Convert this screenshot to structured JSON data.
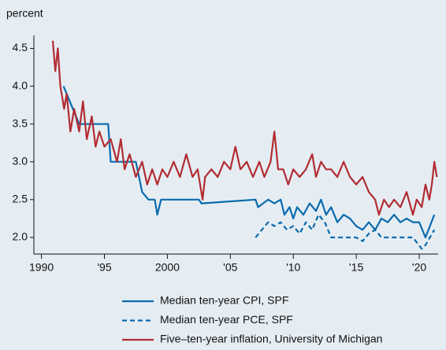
{
  "chart_data": {
    "type": "line",
    "y_label": "percent",
    "xlim": [
      1989.4,
      2021.5
    ],
    "ylim": [
      1.78,
      4.62
    ],
    "xticks": [
      1990,
      {
        "value": 1995,
        "label": "'95"
      },
      2000,
      {
        "value": 2005,
        "label": "'05"
      },
      {
        "value": 2010,
        "label": "'10"
      },
      {
        "value": 2015,
        "label": "'15"
      },
      {
        "value": 2020,
        "label": "'20"
      }
    ],
    "yticks": [
      {
        "value": 2.0,
        "label": "2.0"
      },
      2.5,
      {
        "value": 3.0,
        "label": "3.0"
      },
      3.5,
      {
        "value": 4.0,
        "label": "4.0"
      },
      4.5
    ],
    "series": [
      {
        "name": "Median ten-year CPI, SPF",
        "color": "#0a6aad",
        "dash": false,
        "x": [
          1991.75,
          1992.5,
          1993.0,
          1995.3,
          1995.5,
          1997.5,
          1998.0,
          1998.5,
          1999.0,
          1999.2,
          1999.5,
          2002.5,
          2002.7,
          2007.0,
          2007.2,
          2008.0,
          2008.5,
          2009.0,
          2009.3,
          2009.7,
          2010.0,
          2010.3,
          2010.8,
          2011.3,
          2011.8,
          2012.2,
          2012.6,
          2013.0,
          2013.5,
          2014.0,
          2014.5,
          2015.0,
          2015.5,
          2016.0,
          2016.5,
          2017.0,
          2017.5,
          2018.0,
          2018.5,
          2019.0,
          2019.5,
          2020.0,
          2020.5,
          2021.2
        ],
        "values": [
          4.0,
          3.7,
          3.5,
          3.5,
          3.0,
          3.0,
          2.6,
          2.5,
          2.5,
          2.3,
          2.5,
          2.5,
          2.45,
          2.5,
          2.4,
          2.5,
          2.45,
          2.5,
          2.3,
          2.4,
          2.25,
          2.4,
          2.3,
          2.45,
          2.35,
          2.5,
          2.3,
          2.4,
          2.2,
          2.3,
          2.25,
          2.15,
          2.1,
          2.2,
          2.1,
          2.25,
          2.2,
          2.3,
          2.2,
          2.25,
          2.2,
          2.2,
          2.0,
          2.3
        ]
      },
      {
        "name": "Median ten-year PCE, SPF",
        "color": "#0a6aad",
        "dash": true,
        "x": [
          2007.0,
          2007.5,
          2008.0,
          2008.5,
          2009.0,
          2009.5,
          2010.0,
          2010.5,
          2011.0,
          2011.5,
          2012.0,
          2012.5,
          2013.0,
          2015.0,
          2015.5,
          2016.0,
          2016.5,
          2017.0,
          2019.5,
          2020.2,
          2020.5,
          2021.2
        ],
        "values": [
          2.0,
          2.1,
          2.2,
          2.15,
          2.2,
          2.1,
          2.15,
          2.05,
          2.2,
          2.1,
          2.3,
          2.2,
          2.0,
          2.0,
          1.95,
          2.05,
          2.1,
          2.0,
          2.0,
          1.85,
          1.9,
          2.1
        ]
      },
      {
        "name": "Five–ten-year inflation, University of Michigan",
        "color": "#b22c32",
        "dash": false,
        "x": [
          1990.9,
          1991.1,
          1991.3,
          1991.5,
          1991.8,
          1992.0,
          1992.3,
          1992.6,
          1993.0,
          1993.3,
          1993.6,
          1994.0,
          1994.3,
          1994.6,
          1995.0,
          1995.5,
          1996.0,
          1996.3,
          1996.6,
          1997.0,
          1997.5,
          1998.0,
          1998.4,
          1998.8,
          1999.2,
          1999.6,
          2000.0,
          2000.5,
          2001.0,
          2001.5,
          2002.0,
          2002.4,
          2002.8,
          2003.0,
          2003.5,
          2004.0,
          2004.5,
          2005.0,
          2005.4,
          2005.8,
          2006.3,
          2006.8,
          2007.3,
          2007.7,
          2008.2,
          2008.5,
          2008.8,
          2009.2,
          2009.6,
          2010.0,
          2010.5,
          2011.0,
          2011.5,
          2011.8,
          2012.2,
          2012.6,
          2013.0,
          2013.5,
          2014.0,
          2014.5,
          2015.0,
          2015.5,
          2016.0,
          2016.5,
          2016.8,
          2017.2,
          2017.6,
          2018.0,
          2018.5,
          2019.0,
          2019.5,
          2019.8,
          2020.2,
          2020.5,
          2020.8,
          2021.0,
          2021.2,
          2021.4
        ],
        "values": [
          4.6,
          4.2,
          4.5,
          4.0,
          3.7,
          3.9,
          3.4,
          3.7,
          3.4,
          3.8,
          3.3,
          3.6,
          3.2,
          3.4,
          3.2,
          3.3,
          3.0,
          3.3,
          2.9,
          3.1,
          2.8,
          3.0,
          2.7,
          2.9,
          2.7,
          2.9,
          2.8,
          3.0,
          2.8,
          3.1,
          2.8,
          2.9,
          2.5,
          2.8,
          2.9,
          2.8,
          3.0,
          2.9,
          3.2,
          2.9,
          3.0,
          2.8,
          3.0,
          2.8,
          3.0,
          3.4,
          2.9,
          2.9,
          2.7,
          2.9,
          2.8,
          2.9,
          3.1,
          2.8,
          3.0,
          2.9,
          2.9,
          2.8,
          3.0,
          2.8,
          2.7,
          2.8,
          2.6,
          2.5,
          2.3,
          2.5,
          2.4,
          2.5,
          2.4,
          2.6,
          2.3,
          2.5,
          2.4,
          2.7,
          2.5,
          2.7,
          3.0,
          2.8
        ]
      }
    ]
  }
}
